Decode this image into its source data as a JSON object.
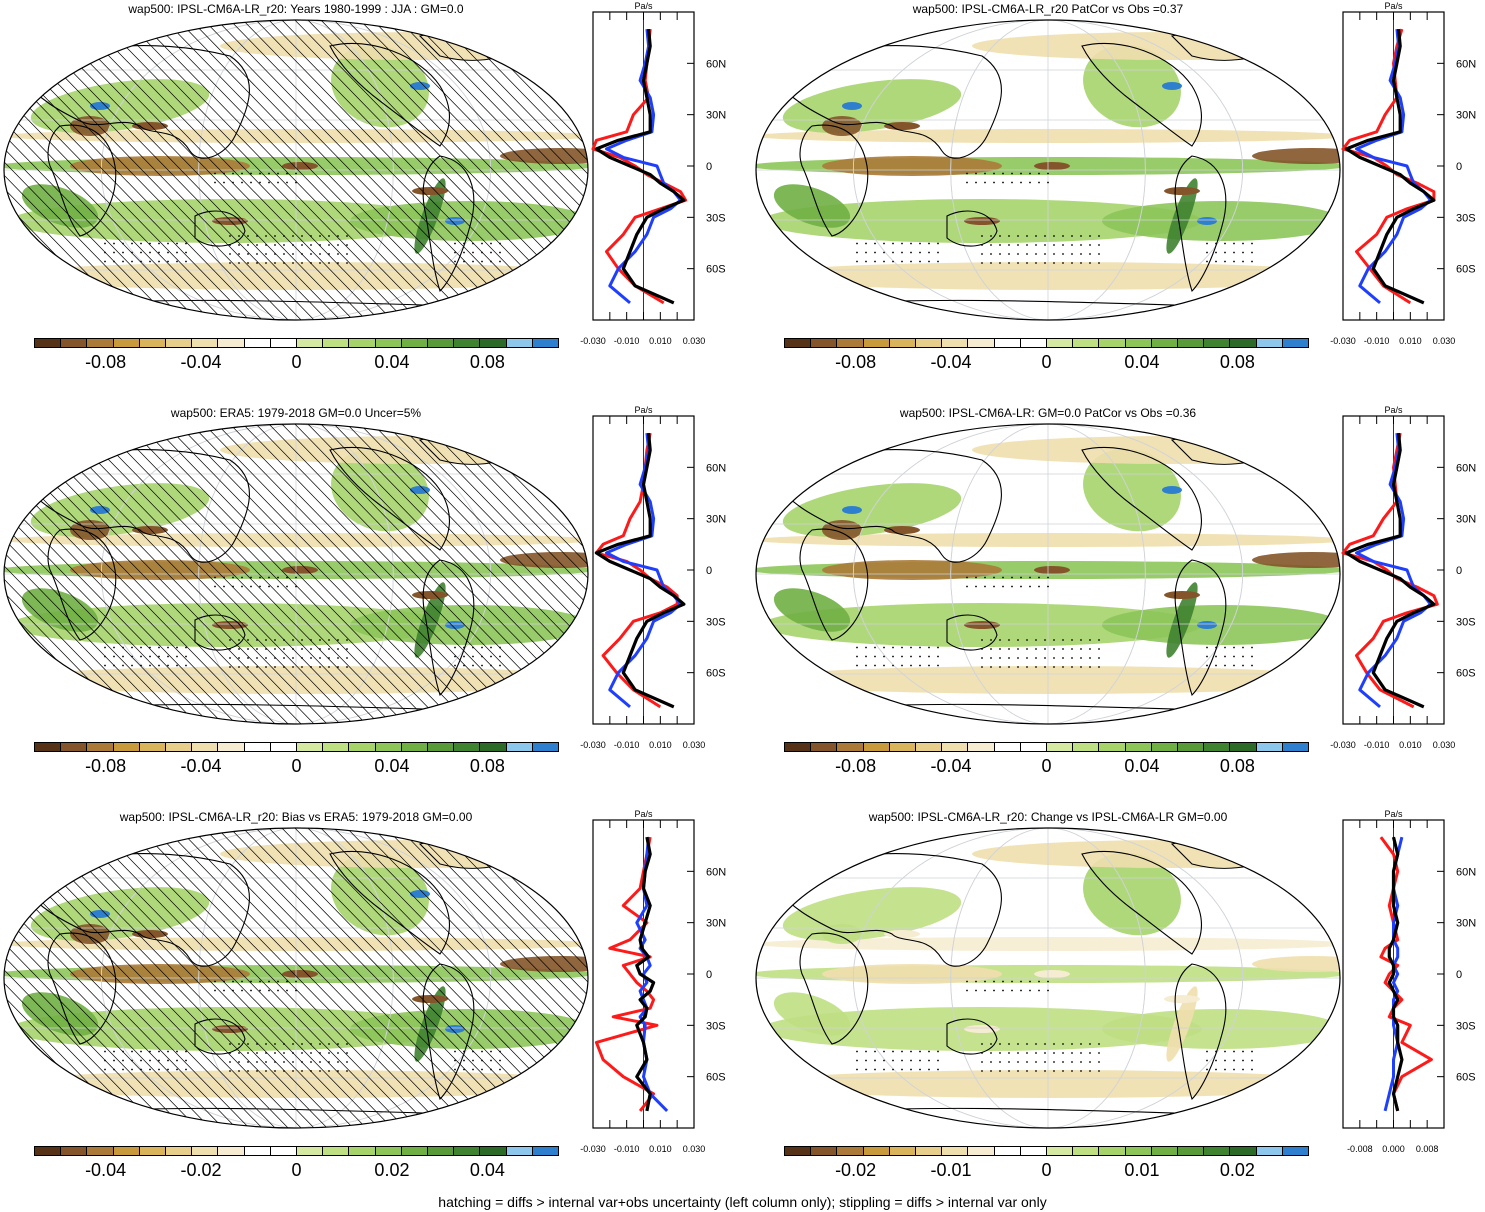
{
  "palette": [
    "#563316",
    "#84552a",
    "#ab7a39",
    "#c99a3b",
    "#d9b45a",
    "#e7cf8b",
    "#efdfae",
    "#f6ecd2",
    "#ffffff",
    "#ffffff",
    "#d6e9a3",
    "#bfdf83",
    "#a6d46b",
    "#8dc559",
    "#70af44",
    "#579a37",
    "#3f8230",
    "#2b6b27",
    "#8dc7ec",
    "#2f7fcf"
  ],
  "line_colors": {
    "model": "#ff1a1a",
    "obs": "#1f3fff",
    "diff": "#000000"
  },
  "footer": "hatching = diffs > internal var+obs uncertainty (left column only); stippling = diffs > internal var only",
  "chart_data": [
    {
      "type": "heatmap",
      "title": "wap500: IPSL-CM6A-LR_r20: Years 1980-1999 : JJA : GM=0.0",
      "hatching": true,
      "colorbar": {
        "range": [
          -0.11,
          0.11
        ],
        "labels": [
          "-0.08",
          "-0.04",
          "0",
          "0.04",
          "0.08"
        ],
        "label_values": [
          -0.08,
          -0.04,
          0,
          0.04,
          0.08
        ]
      },
      "profile": {
        "units": "Pa/s",
        "xlim": [
          -0.03,
          0.03
        ],
        "xticklabels": [
          "-0.030",
          "-0.010",
          "0.010",
          "0.030"
        ],
        "xtickvalues": [
          -0.03,
          -0.01,
          0.01,
          0.03
        ],
        "ylim": [
          -90,
          90
        ],
        "yticklabels": [
          "60N",
          "30N",
          "0",
          "30S",
          "60S"
        ],
        "ytickvalues": [
          60,
          30,
          0,
          -30,
          -60
        ],
        "lat": [
          80,
          70,
          60,
          50,
          40,
          30,
          20,
          15,
          10,
          5,
          0,
          -5,
          -10,
          -15,
          -20,
          -25,
          -30,
          -40,
          -50,
          -60,
          -70,
          -80
        ],
        "model": [
          0.004,
          0.003,
          0.002,
          0.001,
          0.003,
          -0.006,
          -0.01,
          -0.028,
          -0.03,
          -0.014,
          -0.005,
          0.002,
          0.012,
          0.022,
          0.025,
          0.01,
          -0.005,
          -0.012,
          -0.022,
          -0.015,
          -0.005,
          0.012
        ],
        "obs": [
          0.002,
          0.003,
          0.001,
          -0.002,
          0.004,
          0.006,
          0.005,
          -0.01,
          -0.022,
          -0.012,
          0.008,
          0.01,
          0.012,
          0.018,
          0.022,
          0.016,
          0.006,
          0.002,
          -0.005,
          -0.015,
          -0.02,
          -0.008
        ],
        "diff": [
          0.003,
          0.004,
          0.002,
          0.0,
          0.002,
          0.004,
          0.004,
          -0.015,
          -0.028,
          -0.02,
          -0.008,
          0.004,
          0.01,
          0.018,
          0.024,
          0.012,
          0.002,
          -0.004,
          -0.008,
          -0.012,
          -0.005,
          0.018
        ]
      }
    },
    {
      "type": "heatmap",
      "title": "wap500: IPSL-CM6A-LR_r20 PatCor vs Obs =0.37",
      "hatching": false,
      "colorbar": {
        "range": [
          -0.11,
          0.11
        ],
        "labels": [
          "-0.08",
          "-0.04",
          "0",
          "0.04",
          "0.08"
        ],
        "label_values": [
          -0.08,
          -0.04,
          0,
          0.04,
          0.08
        ]
      },
      "profile": {
        "units": "Pa/s",
        "xlim": [
          -0.03,
          0.03
        ],
        "xticklabels": [
          "-0.030",
          "-0.010",
          "0.010",
          "0.030"
        ],
        "xtickvalues": [
          -0.03,
          -0.01,
          0.01,
          0.03
        ],
        "ylim": [
          -90,
          90
        ],
        "yticklabels": [
          "60N",
          "30N",
          "0",
          "30S",
          "60S"
        ],
        "ytickvalues": [
          60,
          30,
          0,
          -30,
          -60
        ],
        "lat": [
          80,
          70,
          60,
          50,
          40,
          30,
          20,
          15,
          10,
          5,
          0,
          -5,
          -10,
          -15,
          -20,
          -25,
          -30,
          -40,
          -50,
          -60,
          -70,
          -80
        ],
        "model": [
          0.005,
          0.002,
          0.0,
          0.001,
          0.002,
          -0.005,
          -0.01,
          -0.026,
          -0.03,
          -0.012,
          -0.004,
          0.002,
          0.014,
          0.024,
          0.024,
          0.008,
          -0.004,
          -0.01,
          -0.022,
          -0.014,
          -0.006,
          0.01
        ],
        "obs": [
          0.002,
          0.003,
          0.001,
          -0.002,
          0.004,
          0.006,
          0.005,
          -0.01,
          -0.022,
          -0.012,
          0.008,
          0.01,
          0.012,
          0.018,
          0.022,
          0.016,
          0.006,
          0.002,
          -0.005,
          -0.015,
          -0.02,
          -0.008
        ],
        "diff": [
          0.003,
          0.004,
          0.002,
          0.0,
          0.002,
          0.004,
          0.004,
          -0.015,
          -0.028,
          -0.02,
          -0.008,
          0.004,
          0.01,
          0.018,
          0.024,
          0.012,
          0.002,
          -0.004,
          -0.008,
          -0.012,
          -0.005,
          0.018
        ]
      }
    },
    {
      "type": "heatmap",
      "title": "wap500: ERA5: 1979-2018 GM=0.0 Uncer=5%",
      "hatching": true,
      "colorbar": {
        "range": [
          -0.11,
          0.11
        ],
        "labels": [
          "-0.08",
          "-0.04",
          "0",
          "0.04",
          "0.08"
        ],
        "label_values": [
          -0.08,
          -0.04,
          0,
          0.04,
          0.08
        ]
      },
      "profile": {
        "units": "Pa/s",
        "xlim": [
          -0.03,
          0.03
        ],
        "xticklabels": [
          "-0.030",
          "-0.010",
          "0.010",
          "0.030"
        ],
        "xtickvalues": [
          -0.03,
          -0.01,
          0.01,
          0.03
        ],
        "ylim": [
          -90,
          90
        ],
        "yticklabels": [
          "60N",
          "30N",
          "0",
          "30S",
          "60S"
        ],
        "ytickvalues": [
          60,
          30,
          0,
          -30,
          -60
        ],
        "lat": [
          80,
          70,
          60,
          50,
          40,
          30,
          20,
          15,
          10,
          5,
          0,
          -5,
          -10,
          -15,
          -20,
          -25,
          -30,
          -40,
          -50,
          -60,
          -70,
          -80
        ],
        "model": [
          0.004,
          0.002,
          0.001,
          0.0,
          -0.002,
          -0.008,
          -0.012,
          -0.024,
          -0.028,
          -0.01,
          -0.002,
          0.004,
          0.014,
          0.02,
          0.02,
          0.01,
          -0.006,
          -0.014,
          -0.024,
          -0.016,
          -0.006,
          0.01
        ],
        "obs": [
          0.002,
          0.003,
          0.001,
          -0.002,
          0.004,
          0.006,
          0.005,
          -0.01,
          -0.022,
          -0.012,
          0.008,
          0.01,
          0.012,
          0.018,
          0.022,
          0.016,
          0.006,
          0.002,
          -0.005,
          -0.015,
          -0.02,
          -0.008
        ],
        "diff": [
          0.003,
          0.004,
          0.002,
          0.0,
          0.002,
          0.004,
          0.004,
          -0.015,
          -0.028,
          -0.02,
          -0.008,
          0.004,
          0.01,
          0.018,
          0.024,
          0.012,
          0.002,
          -0.004,
          -0.008,
          -0.012,
          -0.005,
          0.018
        ]
      }
    },
    {
      "type": "heatmap",
      "title": "wap500: IPSL-CM6A-LR: GM=0.0 PatCor vs Obs =0.36",
      "hatching": false,
      "colorbar": {
        "range": [
          -0.11,
          0.11
        ],
        "labels": [
          "-0.08",
          "-0.04",
          "0",
          "0.04",
          "0.08"
        ],
        "label_values": [
          -0.08,
          -0.04,
          0,
          0.04,
          0.08
        ]
      },
      "profile": {
        "units": "Pa/s",
        "xlim": [
          -0.03,
          0.03
        ],
        "xticklabels": [
          "-0.030",
          "-0.010",
          "0.010",
          "0.030"
        ],
        "xtickvalues": [
          -0.03,
          -0.01,
          0.01,
          0.03
        ],
        "ylim": [
          -90,
          90
        ],
        "yticklabels": [
          "60N",
          "30N",
          "0",
          "30S",
          "60S"
        ],
        "ytickvalues": [
          60,
          30,
          0,
          -30,
          -60
        ],
        "lat": [
          80,
          70,
          60,
          50,
          40,
          30,
          20,
          15,
          10,
          5,
          0,
          -5,
          -10,
          -15,
          -20,
          -25,
          -30,
          -40,
          -50,
          -60,
          -70,
          -80
        ],
        "model": [
          0.004,
          0.002,
          0.0,
          0.001,
          0.002,
          -0.006,
          -0.012,
          -0.026,
          -0.03,
          -0.012,
          -0.004,
          0.002,
          0.014,
          0.024,
          0.026,
          0.008,
          -0.006,
          -0.012,
          -0.022,
          -0.016,
          -0.008,
          0.012
        ],
        "obs": [
          0.002,
          0.003,
          0.001,
          -0.002,
          0.004,
          0.006,
          0.005,
          -0.01,
          -0.022,
          -0.012,
          0.008,
          0.01,
          0.012,
          0.018,
          0.022,
          0.016,
          0.006,
          0.002,
          -0.005,
          -0.015,
          -0.02,
          -0.008
        ],
        "diff": [
          0.003,
          0.004,
          0.002,
          0.0,
          0.002,
          0.004,
          0.004,
          -0.015,
          -0.028,
          -0.02,
          -0.008,
          0.004,
          0.01,
          0.018,
          0.024,
          0.012,
          0.002,
          -0.004,
          -0.008,
          -0.012,
          -0.005,
          0.018
        ]
      }
    },
    {
      "type": "heatmap",
      "title": "wap500: IPSL-CM6A-LR_r20: Bias vs ERA5: 1979-2018 GM=0.00",
      "hatching": true,
      "colorbar": {
        "range": [
          -0.055,
          0.055
        ],
        "labels": [
          "-0.04",
          "-0.02",
          "0",
          "0.02",
          "0.04"
        ],
        "label_values": [
          -0.04,
          -0.02,
          0,
          0.02,
          0.04
        ]
      },
      "profile": {
        "units": "Pa/s",
        "xlim": [
          -0.03,
          0.03
        ],
        "xticklabels": [
          "-0.030",
          "-0.010",
          "0.010",
          "0.030"
        ],
        "xtickvalues": [
          -0.03,
          -0.01,
          0.01,
          0.03
        ],
        "ylim": [
          -90,
          90
        ],
        "yticklabels": [
          "60N",
          "30N",
          "0",
          "30S",
          "60S"
        ],
        "ytickvalues": [
          60,
          30,
          0,
          -30,
          -60
        ],
        "lat": [
          80,
          70,
          60,
          50,
          40,
          30,
          20,
          15,
          10,
          5,
          0,
          -5,
          -10,
          -15,
          -20,
          -25,
          -30,
          -40,
          -50,
          -60,
          -70,
          -80
        ],
        "model": [
          0.004,
          0.002,
          0.0,
          -0.002,
          -0.012,
          0.002,
          -0.008,
          -0.02,
          0.004,
          -0.012,
          -0.008,
          -0.004,
          0.002,
          0.006,
          0.004,
          -0.018,
          0.008,
          -0.028,
          -0.024,
          -0.012,
          0.006,
          -0.002
        ],
        "obs": [
          0.003,
          0.002,
          0.001,
          0.0,
          0.002,
          -0.004,
          0.001,
          -0.002,
          0.002,
          0.004,
          0.0,
          0.002,
          -0.002,
          0.0,
          0.002,
          -0.002,
          0.001,
          0.0,
          0.002,
          0.0,
          0.004,
          0.014
        ],
        "diff": [
          0.002,
          0.004,
          0.001,
          0.0,
          0.004,
          0.001,
          -0.002,
          -0.001,
          0.003,
          -0.004,
          -0.002,
          0.006,
          0.004,
          -0.002,
          0.002,
          0.001,
          -0.004,
          0.0,
          0.002,
          -0.004,
          0.004,
          0.002
        ]
      }
    },
    {
      "type": "heatmap",
      "title": "wap500: IPSL-CM6A-LR_r20: Change vs IPSL-CM6A-LR GM=0.00",
      "hatching": false,
      "colorbar": {
        "range": [
          -0.0275,
          0.0275
        ],
        "labels": [
          "-0.02",
          "-0.01",
          "0",
          "0.01",
          "0.02"
        ],
        "label_values": [
          -0.02,
          -0.01,
          0,
          0.01,
          0.02
        ]
      },
      "profile": {
        "units": "Pa/s",
        "xlim": [
          -0.012,
          0.012
        ],
        "xticklabels": [
          "-0.008",
          "0.000",
          "0.008"
        ],
        "xtickvalues": [
          -0.008,
          0.0,
          0.008
        ],
        "ylim": [
          -90,
          90
        ],
        "yticklabels": [
          "60N",
          "30N",
          "0",
          "30S",
          "60S"
        ],
        "ytickvalues": [
          60,
          30,
          0,
          -30,
          -60
        ],
        "lat": [
          80,
          70,
          60,
          50,
          40,
          30,
          20,
          15,
          10,
          5,
          0,
          -5,
          -10,
          -15,
          -20,
          -25,
          -30,
          -40,
          -50,
          -60,
          -70,
          -80
        ],
        "model": [
          -0.003,
          0.0,
          0.001,
          0.0,
          -0.001,
          0.0,
          0.001,
          -0.002,
          -0.003,
          0.001,
          -0.001,
          -0.002,
          0.0,
          0.002,
          0.0,
          -0.001,
          0.004,
          0.002,
          0.009,
          0.002,
          0.0,
          0.001
        ],
        "obs": [
          0.002,
          0.001,
          0.0,
          0.0,
          0.001,
          0.0,
          0.0,
          0.001,
          0.001,
          0.0,
          0.001,
          0.0,
          0.001,
          0.0,
          0.0,
          0.0,
          0.0,
          0.001,
          0.0,
          0.0,
          -0.001,
          -0.002
        ],
        "diff": [
          0.0,
          0.001,
          0.0,
          0.0,
          0.0,
          0.001,
          0.0,
          -0.001,
          -0.001,
          0.0,
          0.0,
          -0.001,
          0.0,
          0.001,
          0.0,
          0.0,
          0.001,
          0.001,
          0.002,
          0.001,
          0.0,
          0.001
        ]
      }
    }
  ]
}
